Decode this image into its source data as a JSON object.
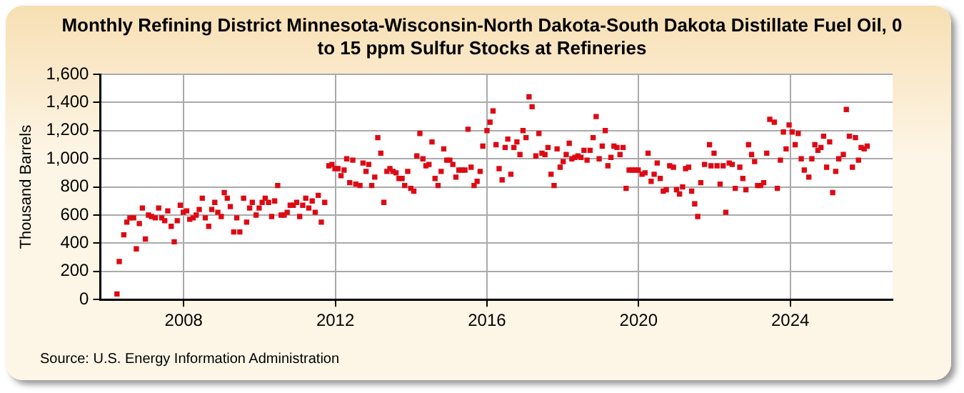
{
  "chart_data": {
    "type": "scatter",
    "title": "Monthly Refining District Minnesota-Wisconsin-North Dakota-South Dakota Distillate Fuel Oil, 0 to 15 ppm Sulfur Stocks at Refineries",
    "ylabel": "Thousand Barrels",
    "annotations": [
      "Source: U.S. Energy Information Administration"
    ],
    "xlim": [
      2005.8,
      2026.7
    ],
    "xticks": [
      2008,
      2012,
      2016,
      2020,
      2024
    ],
    "ylim": [
      0,
      1600
    ],
    "yticks": [
      0,
      200,
      400,
      600,
      800,
      {
        "value": 1000,
        "label": "1,000"
      },
      {
        "value": 1200,
        "label": "1,200"
      },
      {
        "value": 1400,
        "label": "1,400"
      },
      {
        "value": 1600,
        "label": "1,600"
      }
    ],
    "grid": true,
    "marker": "square",
    "legend": false,
    "series": [
      {
        "color": "#dd0a14",
        "x": [
          2006.24,
          2006.3,
          2006.42,
          2006.5,
          2006.58,
          2006.68,
          2006.75,
          2006.83,
          2006.91,
          2006.99,
          2007.07,
          2007.15,
          2007.25,
          2007.34,
          2007.42,
          2007.5,
          2007.58,
          2007.67,
          2007.75,
          2007.83,
          2007.91,
          2007.99,
          2008.08,
          2008.16,
          2008.25,
          2008.33,
          2008.41,
          2008.49,
          2008.57,
          2008.66,
          2008.74,
          2008.82,
          2008.9,
          2008.99,
          2009.07,
          2009.15,
          2009.23,
          2009.32,
          2009.4,
          2009.48,
          2009.58,
          2009.66,
          2009.74,
          2009.81,
          2009.91,
          2009.99,
          2010.07,
          2010.15,
          2010.24,
          2010.32,
          2010.4,
          2010.48,
          2010.57,
          2010.65,
          2010.73,
          2010.81,
          2010.89,
          2010.98,
          2011.06,
          2011.14,
          2011.22,
          2011.3,
          2011.39,
          2011.47,
          2011.55,
          2011.63,
          2011.72,
          2011.83,
          2011.91,
          2011.99,
          2012.07,
          2012.15,
          2012.23,
          2012.3,
          2012.38,
          2012.46,
          2012.54,
          2012.65,
          2012.73,
          2012.81,
          2012.88,
          2012.96,
          2013.04,
          2013.12,
          2013.2,
          2013.28,
          2013.36,
          2013.44,
          2013.52,
          2013.6,
          2013.68,
          2013.76,
          2013.83,
          2013.91,
          2013.99,
          2014.07,
          2014.15,
          2014.23,
          2014.31,
          2014.39,
          2014.47,
          2014.55,
          2014.63,
          2014.71,
          2014.79,
          2014.86,
          2014.94,
          2015.02,
          2015.1,
          2015.18,
          2015.26,
          2015.34,
          2015.42,
          2015.5,
          2015.58,
          2015.66,
          2015.74,
          2015.82,
          2015.89,
          2016.0,
          2016.08,
          2016.16,
          2016.24,
          2016.32,
          2016.4,
          2016.48,
          2016.55,
          2016.63,
          2016.71,
          2016.79,
          2016.87,
          2016.95,
          2017.03,
          2017.11,
          2017.19,
          2017.29,
          2017.37,
          2017.45,
          2017.53,
          2017.61,
          2017.69,
          2017.77,
          2017.85,
          2017.93,
          2018.01,
          2018.09,
          2018.17,
          2018.24,
          2018.32,
          2018.4,
          2018.48,
          2018.56,
          2018.64,
          2018.72,
          2018.8,
          2018.88,
          2018.96,
          2019.04,
          2019.12,
          2019.19,
          2019.27,
          2019.35,
          2019.43,
          2019.51,
          2019.59,
          2019.67,
          2019.75,
          2019.83,
          2019.91,
          2019.99,
          2020.09,
          2020.17,
          2020.25,
          2020.33,
          2020.41,
          2020.49,
          2020.57,
          2020.65,
          2020.73,
          2020.82,
          2020.92,
          2021.0,
          2021.08,
          2021.16,
          2021.24,
          2021.32,
          2021.4,
          2021.48,
          2021.56,
          2021.64,
          2021.74,
          2021.87,
          2021.91,
          2021.99,
          2022.07,
          2022.15,
          2022.23,
          2022.3,
          2022.39,
          2022.47,
          2022.55,
          2022.67,
          2022.75,
          2022.83,
          2022.9,
          2022.98,
          2023.06,
          2023.14,
          2023.22,
          2023.3,
          2023.38,
          2023.46,
          2023.58,
          2023.66,
          2023.74,
          2023.82,
          2023.89,
          2023.97,
          2024.05,
          2024.13,
          2024.21,
          2024.29,
          2024.37,
          2024.49,
          2024.57,
          2024.65,
          2024.73,
          2024.81,
          2024.88,
          2024.96,
          2025.04,
          2025.12,
          2025.2,
          2025.28,
          2025.4,
          2025.48,
          2025.56,
          2025.64,
          2025.72,
          2025.8,
          2025.87,
          2025.95,
          2026.03
        ],
        "values": [
          40,
          270,
          460,
          550,
          580,
          580,
          360,
          540,
          650,
          430,
          600,
          590,
          580,
          650,
          580,
          560,
          630,
          520,
          410,
          560,
          670,
          620,
          630,
          570,
          580,
          600,
          640,
          720,
          580,
          520,
          640,
          690,
          620,
          590,
          760,
          720,
          660,
          480,
          580,
          480,
          720,
          550,
          650,
          690,
          600,
          650,
          690,
          720,
          690,
          590,
          700,
          810,
          600,
          600,
          620,
          670,
          670,
          690,
          590,
          670,
          720,
          650,
          700,
          620,
          740,
          550,
          690,
          950,
          960,
          930,
          930,
          880,
          920,
          1000,
          830,
          990,
          820,
          810,
          970,
          910,
          960,
          810,
          870,
          1150,
          1040,
          690,
          910,
          930,
          910,
          900,
          860,
          860,
          810,
          910,
          790,
          770,
          1020,
          1180,
          1000,
          950,
          960,
          1120,
          860,
          810,
          910,
          1070,
          990,
          990,
          960,
          870,
          920,
          920,
          920,
          1210,
          940,
          810,
          840,
          910,
          1090,
          1200,
          1260,
          1340,
          1100,
          930,
          850,
          1080,
          1140,
          890,
          1080,
          1120,
          1030,
          1200,
          1150,
          1440,
          1370,
          1020,
          1180,
          1040,
          1030,
          1080,
          890,
          810,
          1070,
          940,
          980,
          1030,
          1110,
          1000,
          1010,
          1020,
          1010,
          1060,
          990,
          1060,
          1150,
          1300,
          1000,
          1090,
          1200,
          950,
          1010,
          1090,
          1080,
          1030,
          1080,
          790,
          920,
          920,
          920,
          920,
          890,
          900,
          1040,
          840,
          890,
          970,
          860,
          770,
          780,
          950,
          940,
          780,
          750,
          800,
          930,
          940,
          770,
          680,
          590,
          830,
          960,
          1100,
          950,
          1040,
          950,
          820,
          950,
          620,
          970,
          960,
          790,
          940,
          860,
          780,
          1100,
          1030,
          980,
          810,
          810,
          830,
          1040,
          1280,
          1260,
          790,
          990,
          1190,
          1070,
          1240,
          1190,
          1100,
          1180,
          1000,
          920,
          870,
          1000,
          1100,
          1060,
          1080,
          1160,
          940,
          1120,
          760,
          910,
          1000,
          1030,
          1350,
          1160,
          940,
          1150,
          990,
          1080,
          1070,
          1090
        ]
      }
    ]
  }
}
